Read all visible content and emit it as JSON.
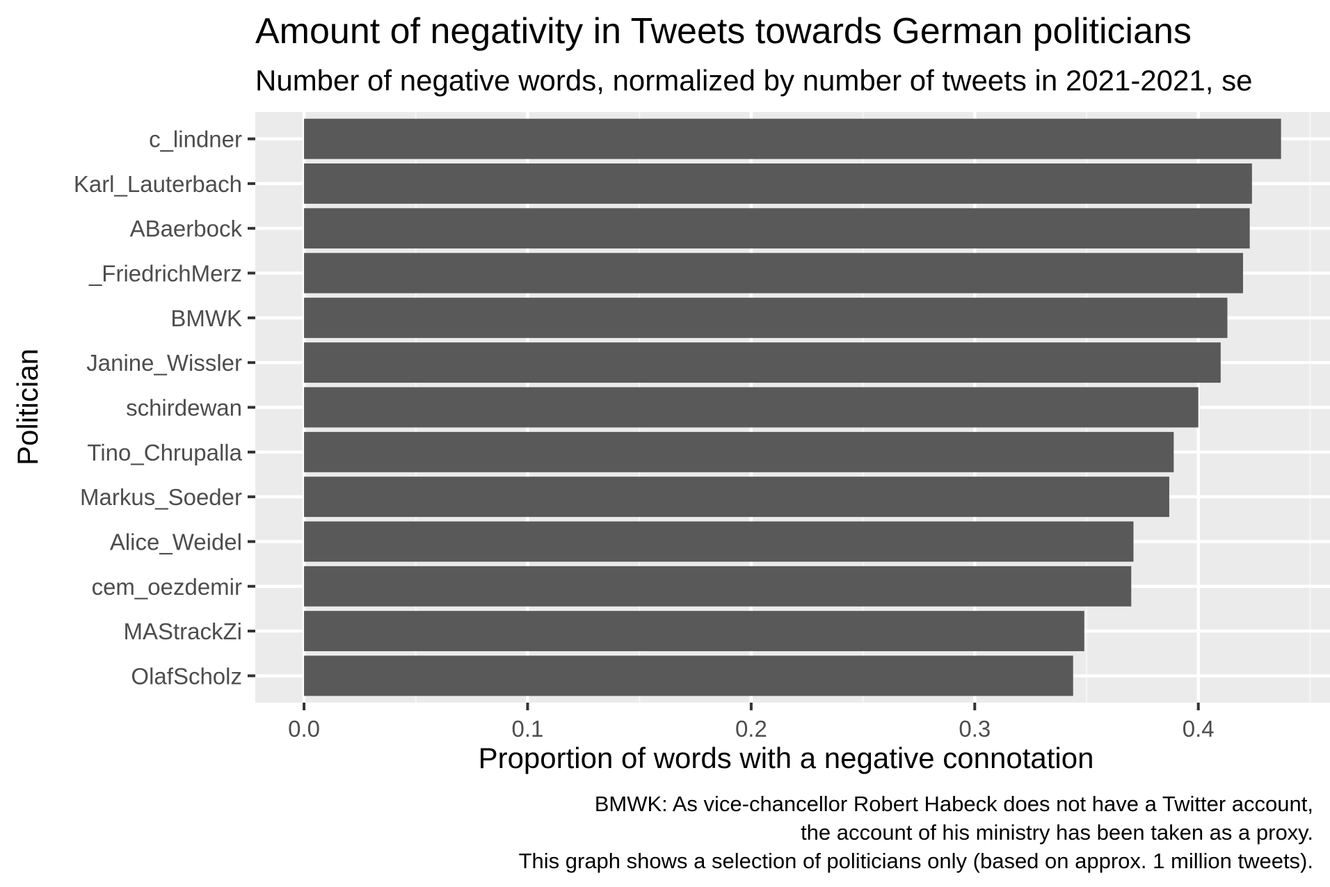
{
  "chart_data": {
    "type": "bar",
    "orientation": "horizontal",
    "title": "Amount of negativity in Tweets towards German politicians",
    "subtitle": "Number of negative words, normalized by number of tweets in 2021-2021, se",
    "xlabel": "Proportion of words with a negative connotation",
    "ylabel": "Politician",
    "categories": [
      "c_lindner",
      "Karl_Lauterbach",
      "ABaerbock",
      "_FriedrichMerz",
      "BMWK",
      "Janine_Wissler",
      "schirdewan",
      "Tino_Chrupalla",
      "Markus_Soeder",
      "Alice_Weidel",
      "cem_oezdemir",
      "MAStrackZi",
      "OlafScholz"
    ],
    "values": [
      0.437,
      0.424,
      0.423,
      0.42,
      0.413,
      0.41,
      0.4,
      0.389,
      0.387,
      0.371,
      0.37,
      0.349,
      0.344
    ],
    "xlim": [
      -0.0218,
      0.4589
    ],
    "xticks": [
      "0.0",
      "0.1",
      "0.2",
      "0.3",
      "0.4"
    ],
    "grid": true,
    "legend": "none",
    "caption": [
      "BMWK: As vice-chancellor Robert Habeck does not have a Twitter account,",
      "the account of his ministry has been taken as a proxy.",
      "This graph shows a selection of politicians only (based on approx. 1 million tweets)."
    ],
    "colors": {
      "bar": "#595959",
      "panel": "#ebebeb",
      "grid_major": "#ffffff",
      "grid_minor": "#f5f5f5",
      "tick_text": "#4d4d4d",
      "tick_mark": "#333333"
    }
  }
}
